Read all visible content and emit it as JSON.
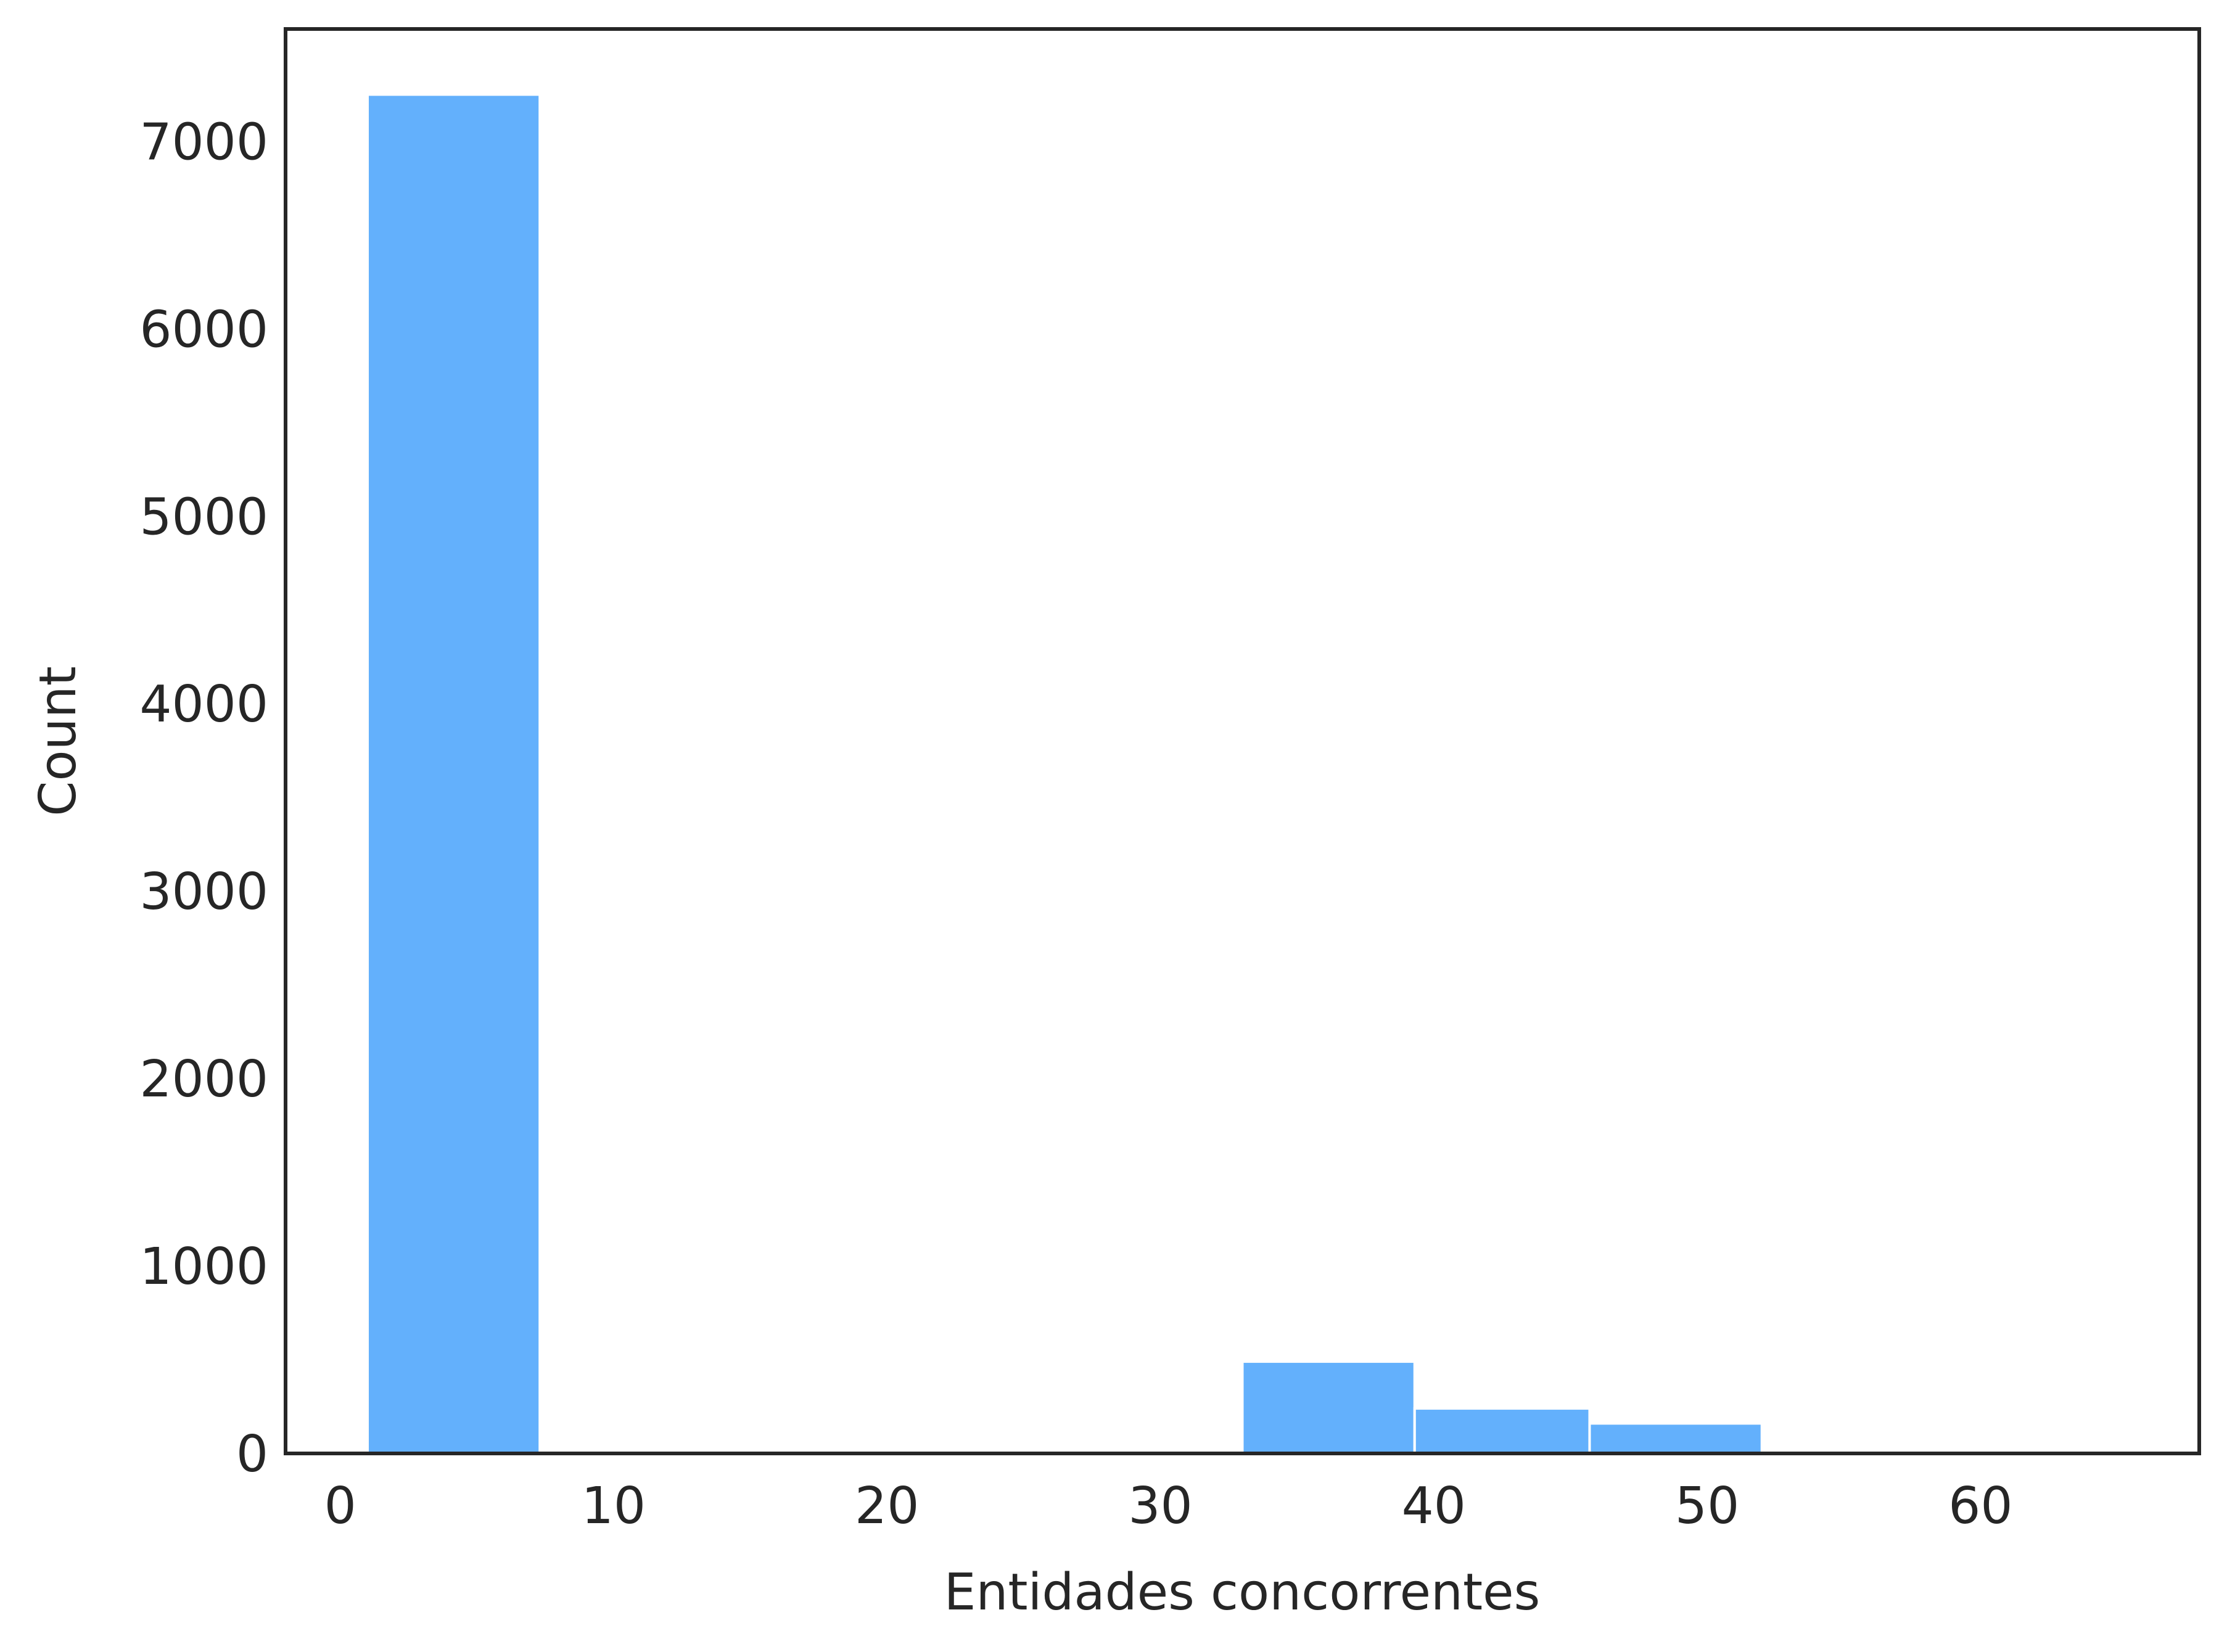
{
  "chart_data": {
    "type": "bar",
    "subtype": "histogram",
    "title": "",
    "xlabel": "Entidades concorrentes",
    "ylabel": "Count",
    "xlim": [
      -2,
      68
    ],
    "ylim": [
      0,
      7600
    ],
    "x_ticks": [
      0,
      10,
      20,
      30,
      40,
      50,
      60
    ],
    "y_ticks": [
      0,
      1000,
      2000,
      3000,
      4000,
      5000,
      6000,
      7000
    ],
    "bins": [
      {
        "x0": 1.0,
        "x1": 7.3,
        "count": 7250
      },
      {
        "x0": 7.3,
        "x1": 13.6,
        "count": 0
      },
      {
        "x0": 13.6,
        "x1": 20.0,
        "count": 0
      },
      {
        "x0": 20.0,
        "x1": 26.3,
        "count": 0
      },
      {
        "x0": 26.3,
        "x1": 32.6,
        "count": 0
      },
      {
        "x0": 33.0,
        "x1": 39.3,
        "count": 490
      },
      {
        "x0": 39.3,
        "x1": 45.7,
        "count": 240
      },
      {
        "x0": 45.7,
        "x1": 52.0,
        "count": 160
      }
    ],
    "grid": false,
    "bar_color": "#63b0fc"
  }
}
